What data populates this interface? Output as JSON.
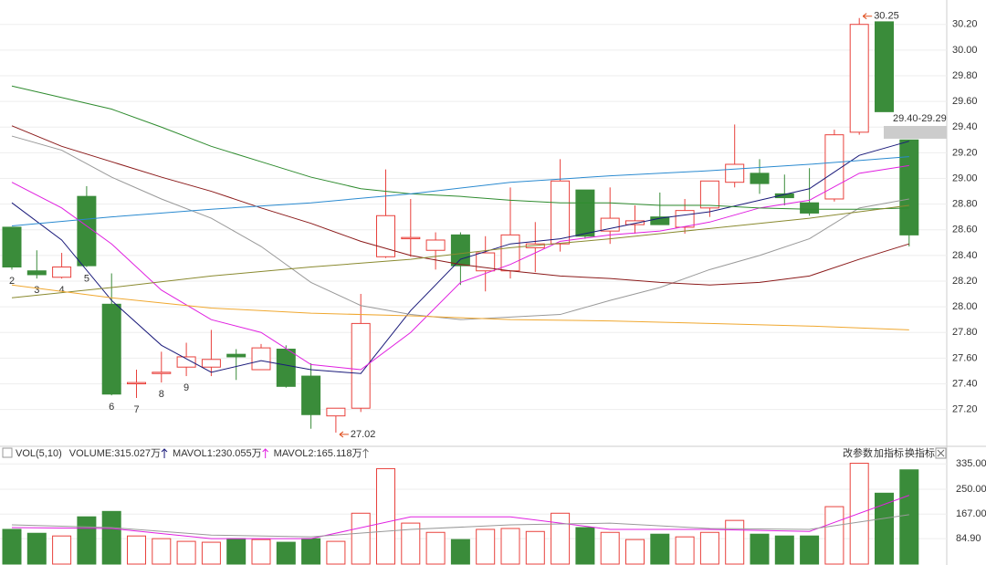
{
  "chart_data": [
    {
      "type": "candlestick",
      "categories": [
        "2",
        "3",
        "4",
        "5",
        "6",
        "7",
        "8",
        "9",
        null,
        null,
        null,
        null,
        null,
        null,
        null,
        null,
        null,
        null,
        null,
        null,
        null,
        null,
        null,
        null,
        null,
        null,
        null,
        null,
        null,
        null,
        null,
        null,
        null,
        null,
        null,
        null,
        null
      ],
      "open": [
        28.62,
        28.28,
        28.23,
        28.86,
        28.02,
        27.4,
        27.48,
        27.53,
        27.53,
        27.63,
        27.51,
        27.67,
        27.46,
        27.15,
        27.21,
        28.39,
        28.53,
        28.44,
        28.56,
        28.28,
        28.28,
        28.46,
        28.49,
        28.91,
        28.59,
        28.64,
        28.7,
        28.62,
        28.77,
        28.97,
        29.04,
        28.88,
        28.81,
        28.84,
        29.36,
        30.22,
        29.3
      ],
      "high": [
        28.62,
        28.44,
        28.42,
        28.94,
        28.26,
        27.51,
        27.65,
        27.72,
        27.82,
        27.67,
        27.71,
        27.7,
        27.56,
        27.21,
        28.1,
        29.07,
        28.84,
        28.58,
        28.58,
        28.55,
        28.93,
        28.66,
        29.15,
        28.91,
        28.93,
        28.79,
        28.89,
        28.84,
        28.98,
        29.42,
        29.15,
        29.03,
        29.08,
        29.38,
        30.25,
        30.22,
        29.3
      ],
      "low": [
        28.29,
        28.22,
        28.22,
        28.31,
        27.31,
        27.29,
        27.41,
        27.46,
        27.46,
        27.43,
        27.51,
        27.37,
        27.05,
        27.02,
        27.18,
        28.38,
        28.39,
        28.29,
        28.17,
        28.12,
        28.22,
        28.27,
        28.43,
        28.53,
        28.49,
        28.57,
        28.64,
        28.57,
        28.7,
        28.93,
        28.88,
        28.79,
        28.71,
        28.82,
        29.34,
        29.52,
        28.47
      ],
      "close": [
        28.31,
        28.25,
        28.31,
        28.32,
        27.32,
        27.41,
        27.49,
        27.61,
        27.59,
        27.61,
        27.68,
        27.38,
        27.16,
        27.21,
        27.87,
        28.71,
        28.54,
        28.52,
        28.32,
        28.42,
        28.56,
        28.49,
        28.98,
        28.55,
        28.69,
        28.67,
        28.64,
        28.75,
        28.98,
        29.11,
        28.96,
        28.85,
        28.73,
        29.34,
        30.2,
        29.52,
        28.56
      ],
      "up_color": "#e8413c",
      "down_color": "#3a8c3a",
      "label_color": "#f0a030",
      "ylim": [
        26.92,
        30.39
      ],
      "yticks": [
        {
          "value": 27.2,
          "label": "27.20"
        },
        {
          "value": 27.4,
          "label": "27.40"
        },
        {
          "value": 27.6,
          "label": "27.60"
        },
        {
          "value": 27.8,
          "label": "27.80"
        },
        {
          "value": 28.0,
          "label": "28.00"
        },
        {
          "value": 28.2,
          "label": "28.20"
        },
        {
          "value": 28.4,
          "label": "28.40"
        },
        {
          "value": 28.6,
          "label": "28.60"
        },
        {
          "value": 28.8,
          "label": "28.80"
        },
        {
          "value": 29.0,
          "label": "29.00"
        },
        {
          "value": 29.2,
          "label": "29.20"
        },
        {
          "value": 29.4,
          "label": "29.40"
        },
        {
          "value": 29.6,
          "label": "29.60"
        },
        {
          "value": 29.8,
          "label": "29.80"
        },
        {
          "value": 30.0,
          "label": "30.00"
        },
        {
          "value": 30.2,
          "label": "30.20"
        }
      ],
      "grid": true,
      "max_index": 34,
      "min_index": 13,
      "price_label": "29.40-29.29",
      "series": [
        {
          "color": "#1a1a7a",
          "x": [
            0,
            2,
            4,
            6,
            8,
            10,
            12,
            14,
            16,
            18,
            20,
            22,
            24,
            26,
            28,
            30,
            32,
            34,
            36
          ],
          "values": [
            28.81,
            28.52,
            28.05,
            27.7,
            27.49,
            27.58,
            27.51,
            27.48,
            27.97,
            28.37,
            28.49,
            28.53,
            28.61,
            28.69,
            28.74,
            28.83,
            28.92,
            29.18,
            29.29
          ]
        },
        {
          "color": "#e020e0",
          "x": [
            0,
            2,
            4,
            6,
            8,
            10,
            12,
            14,
            16,
            18,
            20,
            22,
            24,
            26,
            28,
            30,
            32,
            34,
            36
          ],
          "values": [
            28.97,
            28.77,
            28.49,
            28.13,
            27.9,
            27.8,
            27.55,
            27.51,
            27.8,
            28.19,
            28.33,
            28.51,
            28.56,
            28.59,
            28.66,
            28.77,
            28.83,
            29.04,
            29.1
          ]
        },
        {
          "color": "#999999",
          "x": [
            0,
            2,
            4,
            6,
            8,
            10,
            12,
            14,
            16,
            18,
            20,
            22,
            24,
            26,
            28,
            30,
            32,
            34,
            36
          ],
          "values": [
            29.33,
            29.22,
            29.01,
            28.84,
            28.69,
            28.47,
            28.19,
            28.01,
            27.94,
            27.9,
            27.92,
            27.94,
            28.05,
            28.15,
            28.29,
            28.4,
            28.53,
            28.77,
            28.84
          ]
        },
        {
          "color": "#8b1a1a",
          "x": [
            0,
            2,
            4,
            6,
            8,
            10,
            12,
            14,
            16,
            18,
            20,
            22,
            24,
            26,
            28,
            30,
            32,
            34,
            36
          ],
          "values": [
            29.41,
            29.25,
            29.13,
            29.01,
            28.9,
            28.77,
            28.65,
            28.51,
            28.4,
            28.33,
            28.28,
            28.24,
            28.22,
            28.19,
            28.17,
            28.19,
            28.24,
            28.37,
            28.49
          ]
        },
        {
          "color": "#2e8b2e",
          "x": [
            0,
            2,
            4,
            6,
            8,
            10,
            12,
            14,
            16,
            18,
            20,
            22,
            24,
            26,
            28,
            30,
            32,
            34,
            36
          ],
          "values": [
            29.72,
            29.63,
            29.54,
            29.4,
            29.25,
            29.13,
            29.01,
            28.92,
            28.88,
            28.86,
            28.83,
            28.81,
            28.81,
            28.79,
            28.79,
            28.77,
            28.76,
            28.76,
            28.77
          ]
        },
        {
          "color": "#2a8ad0",
          "x": [
            0,
            4,
            8,
            12,
            16,
            20,
            24,
            28,
            32,
            36
          ],
          "values": [
            28.63,
            28.7,
            28.76,
            28.81,
            28.88,
            28.97,
            29.02,
            29.06,
            29.11,
            29.17
          ]
        },
        {
          "color": "#8a8a30",
          "x": [
            0,
            4,
            8,
            12,
            16,
            20,
            24,
            28,
            32,
            36
          ],
          "values": [
            28.07,
            28.15,
            28.24,
            28.31,
            28.37,
            28.46,
            28.53,
            28.61,
            28.69,
            28.79
          ]
        },
        {
          "color": "#f0a830",
          "x": [
            0,
            4,
            8,
            12,
            16,
            20,
            24,
            28,
            32,
            36
          ],
          "values": [
            28.17,
            28.07,
            27.99,
            27.95,
            27.93,
            27.9,
            27.89,
            27.87,
            27.85,
            27.82
          ]
        }
      ]
    },
    {
      "type": "bar",
      "legend": [
        {
          "text": "VOL(5,10)",
          "color": "#333333"
        },
        {
          "text": "VOLUME:315.027万",
          "color": "#1a1a7a"
        },
        {
          "text": "MAVOL1:230.055万",
          "color": "#e020e0"
        },
        {
          "text": "MAVOL2:165.118万",
          "color": "#777777"
        }
      ],
      "buttons": [
        "改参数",
        "加指标",
        "换指标"
      ],
      "values": [
        116,
        103,
        94,
        158,
        176,
        94,
        85,
        76,
        73,
        85,
        82,
        73,
        85,
        76,
        170,
        319,
        137,
        106,
        82,
        116,
        119,
        109,
        170,
        122,
        106,
        82,
        100,
        91,
        106,
        146,
        100,
        94,
        94,
        192,
        337,
        237,
        315.027
      ],
      "ylim": [
        0,
        360
      ],
      "yticks": [
        {
          "value": 84.9,
          "label": "84.90"
        },
        {
          "value": 167,
          "label": "167.00"
        },
        {
          "value": 250,
          "label": "250.00"
        },
        {
          "value": 335,
          "label": "335.00"
        }
      ],
      "series": [
        {
          "color": "#e020e0",
          "x": [
            0,
            4,
            8,
            12,
            16,
            20,
            24,
            28,
            32,
            36
          ],
          "values": [
            122,
            119,
            85,
            85,
            158,
            158,
            116,
            116,
            109,
            230.055
          ]
        },
        {
          "color": "#999999",
          "x": [
            0,
            4,
            8,
            12,
            16,
            20,
            24,
            28,
            32,
            36
          ],
          "values": [
            131,
            122,
            97,
            91,
            116,
            131,
            137,
            119,
            116,
            165.118
          ]
        }
      ]
    }
  ]
}
